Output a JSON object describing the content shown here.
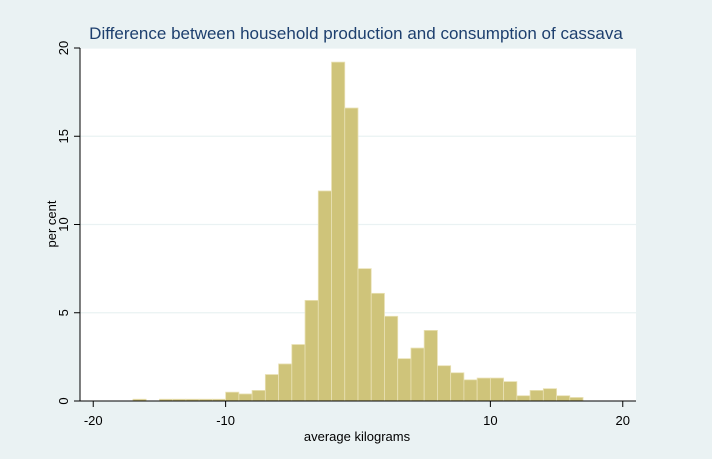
{
  "chart_data": {
    "type": "bar",
    "title": "Difference between household production and consumption of cassava",
    "xlabel": "average kilograms",
    "ylabel": "per cent",
    "xlim": [
      -20,
      20
    ],
    "ylim": [
      0,
      20
    ],
    "xticks": [
      "-20",
      "-10",
      "10",
      "20"
    ],
    "xtick_values": [
      -20,
      -10,
      10,
      20
    ],
    "yticks": [
      "0",
      "5",
      "10",
      "15",
      "20"
    ],
    "ytick_values": [
      0,
      5,
      10,
      15,
      20
    ],
    "grid": true,
    "bin_edges": [
      -21,
      -20,
      -19,
      -18,
      -17,
      -16,
      -15,
      -14,
      -13,
      -12,
      -11,
      -10,
      -9,
      -8,
      -7,
      -6,
      -5,
      -4,
      -3,
      -2,
      -1,
      0,
      1,
      2,
      3,
      4,
      5,
      6,
      7,
      8,
      9,
      10,
      11,
      12,
      13,
      14,
      15,
      16,
      17,
      18,
      19,
      20,
      21
    ],
    "values": [
      0,
      0,
      0,
      0,
      0.1,
      0,
      0.1,
      0.1,
      0.1,
      0.1,
      0.1,
      0.5,
      0.4,
      0.6,
      1.5,
      2.1,
      3.2,
      5.7,
      11.9,
      19.2,
      16.6,
      7.5,
      6.1,
      4.8,
      2.4,
      3.0,
      4.0,
      2.0,
      1.6,
      1.2,
      1.3,
      1.3,
      1.1,
      0.3,
      0.6,
      0.7,
      0.3,
      0.2,
      0,
      0,
      0,
      0
    ]
  },
  "colors": {
    "bar_fill": "#cfc47a",
    "bar_stroke": "#e9e1b5",
    "plot_background": "#ffffff",
    "outer_background": "#eaf2f3",
    "grid": "#eaf2f3",
    "title": "#1d3f6e",
    "axis": "#000000"
  }
}
